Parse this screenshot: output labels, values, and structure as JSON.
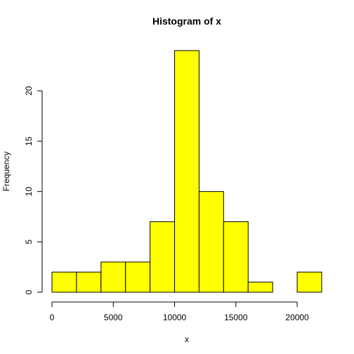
{
  "chart_data": {
    "type": "bar",
    "title": "Histogram of x",
    "xlabel": "x",
    "ylabel": "Frequency",
    "bins": [
      {
        "start": 0,
        "end": 2000,
        "count": 2
      },
      {
        "start": 2000,
        "end": 4000,
        "count": 2
      },
      {
        "start": 4000,
        "end": 6000,
        "count": 3
      },
      {
        "start": 6000,
        "end": 8000,
        "count": 3
      },
      {
        "start": 8000,
        "end": 10000,
        "count": 7
      },
      {
        "start": 10000,
        "end": 12000,
        "count": 24
      },
      {
        "start": 12000,
        "end": 14000,
        "count": 10
      },
      {
        "start": 14000,
        "end": 16000,
        "count": 7
      },
      {
        "start": 16000,
        "end": 18000,
        "count": 1
      },
      {
        "start": 18000,
        "end": 20000,
        "count": 0
      },
      {
        "start": 20000,
        "end": 22000,
        "count": 2
      }
    ],
    "xlim": [
      0,
      22000
    ],
    "ylim": [
      0,
      24
    ],
    "x_ticks": [
      0,
      5000,
      10000,
      15000,
      20000
    ],
    "x_tick_labels": [
      "0",
      "5000",
      "10000",
      "15000",
      "20000"
    ],
    "y_ticks": [
      0,
      5,
      10,
      15,
      20
    ],
    "y_tick_labels": [
      "0",
      "5",
      "10",
      "15",
      "20"
    ],
    "bar_color": "#ffff00",
    "border_color": "#000000",
    "grid": false,
    "legend": "none"
  }
}
